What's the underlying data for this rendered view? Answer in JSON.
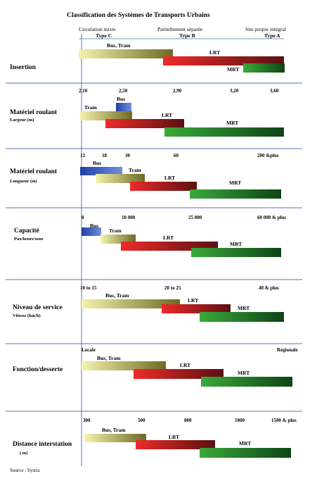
{
  "title": "Classification des Systèmes de Transports Urbains",
  "header": {
    "col1_line1": "Circulation mixte",
    "col1_line2": "Type C",
    "col2_line1": "Partiellement séparée",
    "col2_line2": "Type B",
    "col3_line1": "Site propre intégral",
    "col3_line2": "Type A"
  },
  "source": "Source : Systra",
  "colors": {
    "bus": [
      "#1f3fa8",
      "#6f8fd8"
    ],
    "bus_tram": [
      "#f4f4b0",
      "#6e6a22"
    ],
    "lrt": [
      "#ee2a2a",
      "#5a1010"
    ],
    "mrt": [
      "#3aaa3a",
      "#0e4416"
    ],
    "rule": "#5577aa"
  },
  "chart_data": [
    {
      "type": "bar",
      "subtype": "range",
      "title": "Insertion",
      "subtitle": "",
      "ticks": [],
      "series": [
        {
          "name": "Bus, Tram",
          "range": [
            "Type C",
            "Type B"
          ]
        },
        {
          "name": "LRT",
          "range": [
            "Type B",
            "Type A"
          ]
        },
        {
          "name": "MRT",
          "range": [
            "Type A",
            "Type A"
          ]
        }
      ]
    },
    {
      "type": "bar",
      "subtype": "range",
      "title": "Matériel roulant",
      "subtitle": "Largeur (m)",
      "ticks": [
        "2,10",
        "2,50",
        "2,90",
        "3,20",
        "3,60"
      ],
      "series": [
        {
          "name": "Bus",
          "range": [
            2.4,
            2.55
          ]
        },
        {
          "name": "Tram",
          "range": [
            2.1,
            2.55
          ]
        },
        {
          "name": "LRT",
          "range": [
            2.2,
            2.95
          ]
        },
        {
          "name": "MRT",
          "range": [
            2.75,
            3.6
          ]
        }
      ]
    },
    {
      "type": "bar",
      "subtype": "range",
      "title": "Matériel roulant",
      "subtitle": "Longueur (m)",
      "ticks": [
        "12",
        "18",
        "30",
        "60",
        "200 &plus"
      ],
      "series": [
        {
          "name": "Bus",
          "range": [
            12,
            30
          ]
        },
        {
          "name": "Tram",
          "range": [
            18,
            45
          ]
        },
        {
          "name": "LRT",
          "range": [
            30,
            75
          ]
        },
        {
          "name": "MRT",
          "range": [
            70,
            200
          ]
        }
      ]
    },
    {
      "type": "bar",
      "subtype": "range",
      "title": "Capacité",
      "subtitle": "Pax/heure/sens",
      "ticks": [
        "0",
        "10 000",
        "25 000",
        "60 000 & plus"
      ],
      "series": [
        {
          "name": "Bus",
          "range": [
            0,
            4000
          ]
        },
        {
          "name": "Tram",
          "range": [
            4000,
            12000
          ]
        },
        {
          "name": "LRT",
          "range": [
            10000,
            35000
          ]
        },
        {
          "name": "MRT",
          "range": [
            25000,
            60000
          ]
        }
      ]
    },
    {
      "type": "bar",
      "subtype": "range",
      "title": "Niveau de service",
      "subtitle": "Vitesse (km/h)",
      "ticks": [
        "10 to 15",
        "20 to 25",
        "40 & plus"
      ],
      "series": [
        {
          "name": "Bus, Tram",
          "range": [
            10,
            22
          ]
        },
        {
          "name": "LRT",
          "range": [
            20,
            30
          ]
        },
        {
          "name": "MRT",
          "range": [
            25,
            40
          ]
        }
      ]
    },
    {
      "type": "bar",
      "subtype": "range",
      "title": "Fonction/desserte",
      "subtitle": "",
      "ticks": [
        "Locale",
        "Régionale"
      ],
      "series": [
        {
          "name": "Bus, Tram",
          "range": [
            "Locale",
            "Locale/intermédiaire"
          ]
        },
        {
          "name": "LRT",
          "range": [
            "intermédiaire",
            "intermédiaire"
          ]
        },
        {
          "name": "MRT",
          "range": [
            "intermédiaire",
            "Régionale"
          ]
        }
      ]
    },
    {
      "type": "bar",
      "subtype": "range",
      "title": "Distance interstation",
      "subtitle": "( m)",
      "ticks": [
        "300",
        "500",
        "800",
        "1000",
        "1500 & plus"
      ],
      "series": [
        {
          "name": "Bus, Tram",
          "range": [
            300,
            500
          ]
        },
        {
          "name": "LRT",
          "range": [
            500,
            950
          ]
        },
        {
          "name": "MRT",
          "range": [
            800,
            1500
          ]
        }
      ]
    }
  ]
}
